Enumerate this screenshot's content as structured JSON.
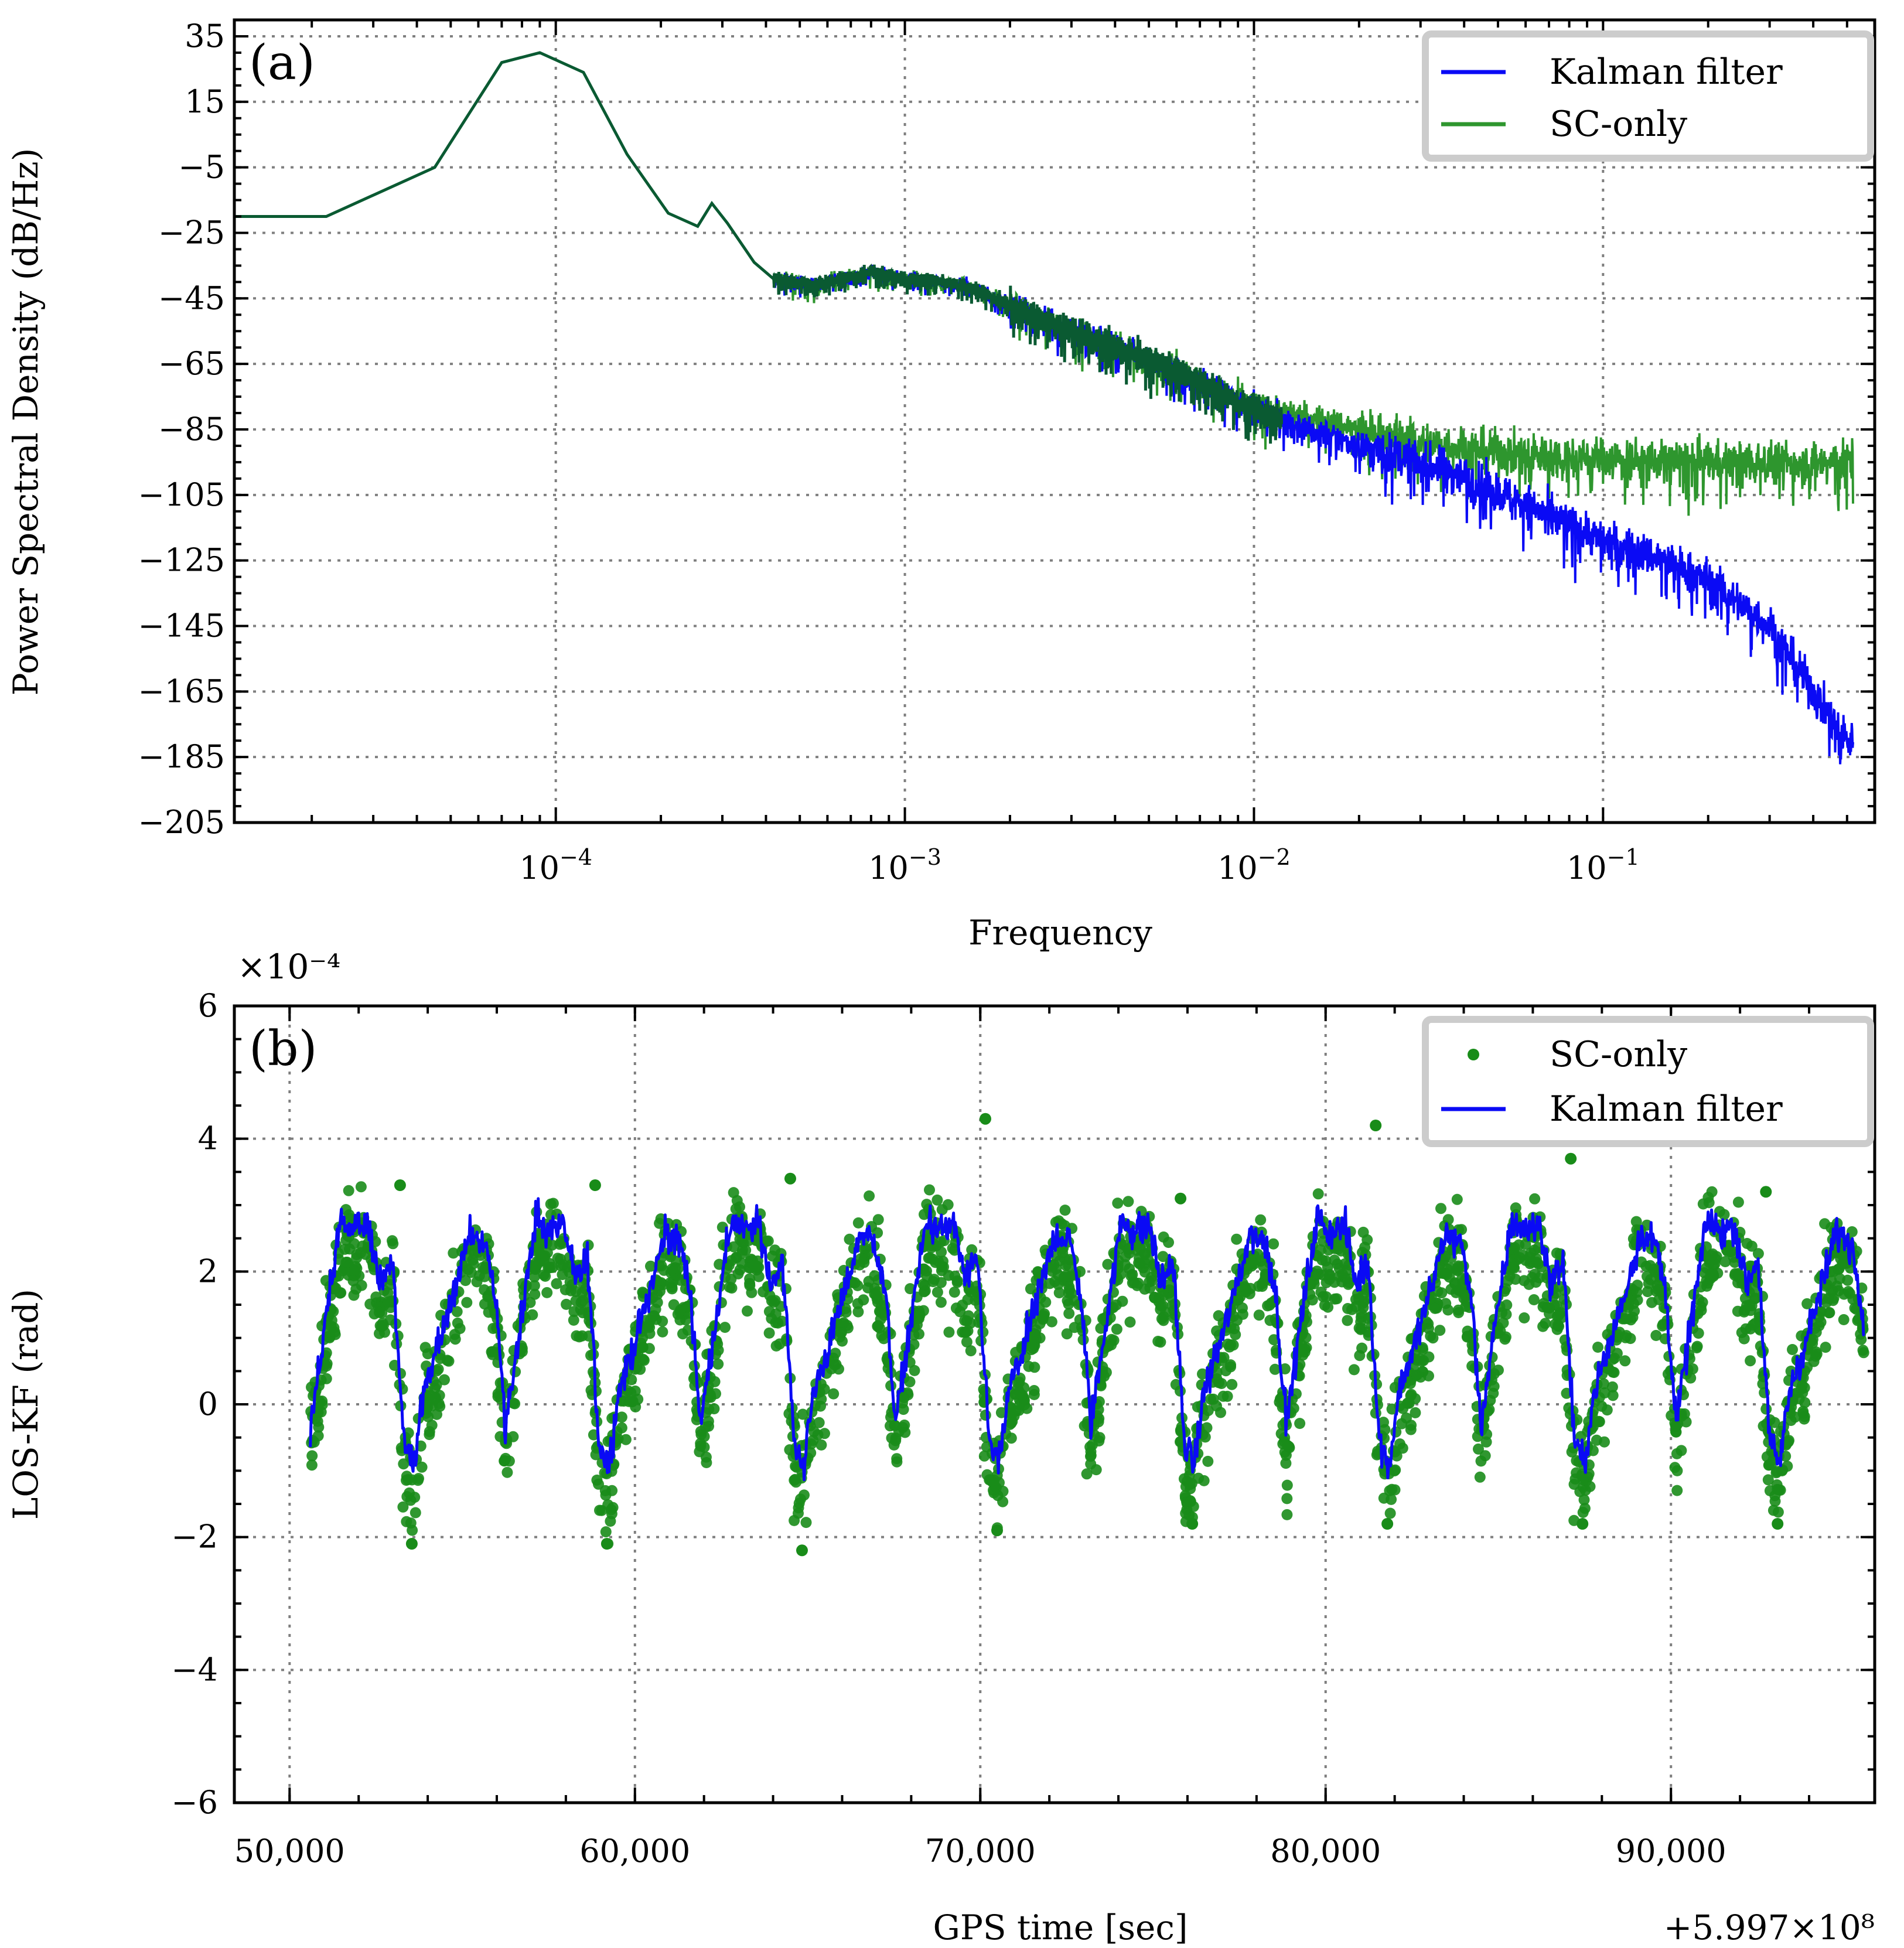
{
  "colors": {
    "kalman": "#0a0af5",
    "sc_only": "#2e962e",
    "overlap": "#0a5a32",
    "scatter": "#198c19"
  },
  "chart_data": [
    {
      "panel": "(a)",
      "type": "line",
      "xscale": "log",
      "xlabel": "Frequency",
      "ylabel": "Power Spectral Density (dB/Hz)",
      "xlim": [
        1.2e-05,
        0.6
      ],
      "ylim": [
        -205,
        40
      ],
      "yticks": [
        35,
        15,
        -5,
        -25,
        -45,
        -65,
        -85,
        -105,
        -125,
        -145,
        -165,
        -185,
        -205
      ],
      "ytick_labels": [
        "35",
        "15",
        "−5",
        "−25",
        "−45",
        "−65",
        "−85",
        "−105",
        "−125",
        "−145",
        "−165",
        "−185",
        "−205"
      ],
      "xticks": [
        0.0001,
        0.001,
        0.01,
        0.1
      ],
      "xtick_bases": [
        "10",
        "10",
        "10",
        "10"
      ],
      "xtick_exponents": [
        "−4",
        "−3",
        "−2",
        "−1"
      ],
      "legend": {
        "position": "top-right",
        "entries": [
          "Kalman filter",
          "SC-only"
        ]
      },
      "series": [
        {
          "name": "Kalman filter",
          "points": [
            [
              1.2e-05,
              -20
            ],
            [
              2.2e-05,
              -20
            ],
            [
              4.5e-05,
              -5
            ],
            [
              7e-05,
              27
            ],
            [
              9e-05,
              30
            ],
            [
              0.00012,
              24
            ],
            [
              0.00016,
              -1
            ],
            [
              0.00021,
              -19
            ],
            [
              0.000255,
              -23
            ],
            [
              0.00028,
              -16
            ],
            [
              0.00031,
              -22
            ],
            [
              0.00037,
              -34
            ],
            [
              0.00042,
              -39
            ],
            [
              0.00055,
              -41
            ],
            [
              0.0008,
              -37
            ],
            [
              0.001,
              -39
            ],
            [
              0.0015,
              -41
            ],
            [
              0.002,
              -47
            ],
            [
              0.003,
              -55
            ],
            [
              0.004,
              -60
            ],
            [
              0.006,
              -67
            ],
            [
              0.01,
              -79
            ],
            [
              0.02,
              -90
            ],
            [
              0.035,
              -97
            ],
            [
              0.05,
              -104
            ],
            [
              0.08,
              -114
            ],
            [
              0.1,
              -119
            ],
            [
              0.15,
              -125
            ],
            [
              0.2,
              -131
            ],
            [
              0.3,
              -145
            ],
            [
              0.4,
              -165
            ],
            [
              0.5,
              -180
            ]
          ]
        },
        {
          "name": "SC-only",
          "points": [
            [
              1.2e-05,
              -20
            ],
            [
              2.2e-05,
              -20
            ],
            [
              4.5e-05,
              -5
            ],
            [
              7e-05,
              27
            ],
            [
              9e-05,
              30
            ],
            [
              0.00012,
              24
            ],
            [
              0.00016,
              -1
            ],
            [
              0.00021,
              -19
            ],
            [
              0.000255,
              -23
            ],
            [
              0.00028,
              -16
            ],
            [
              0.00031,
              -22
            ],
            [
              0.00037,
              -34
            ],
            [
              0.00042,
              -39
            ],
            [
              0.00055,
              -41
            ],
            [
              0.0008,
              -37
            ],
            [
              0.001,
              -39
            ],
            [
              0.0015,
              -41
            ],
            [
              0.002,
              -47
            ],
            [
              0.003,
              -55
            ],
            [
              0.004,
              -60
            ],
            [
              0.006,
              -67
            ],
            [
              0.01,
              -78
            ],
            [
              0.015,
              -82
            ],
            [
              0.02,
              -85
            ],
            [
              0.03,
              -89
            ],
            [
              0.05,
              -92
            ],
            [
              0.1,
              -94
            ],
            [
              0.2,
              -95
            ],
            [
              0.5,
              -95
            ]
          ]
        }
      ]
    },
    {
      "panel": "(b)",
      "type": "scatter",
      "xlabel": "GPS time [sec]",
      "ylabel": "LOS-KF (rad)",
      "y_multiplier": "×10⁻⁴",
      "x_offset": "+5.997×10⁸",
      "xlim": [
        48400,
        95900
      ],
      "ylim": [
        -6,
        6
      ],
      "yticks": [
        6,
        4,
        2,
        0,
        -2,
        -4,
        -6
      ],
      "ytick_labels": [
        "6",
        "4",
        "2",
        "0",
        "−2",
        "−4",
        "−6"
      ],
      "xticks": [
        50000,
        60000,
        70000,
        80000,
        90000
      ],
      "xtick_labels": [
        "50,000",
        "60,000",
        "70,000",
        "80,000",
        "90,000"
      ],
      "legend": {
        "position": "top-right",
        "entries": [
          "SC-only",
          "Kalman filter"
        ]
      },
      "series": [
        {
          "name": "Kalman filter",
          "x_range": [
            50600,
            95600
          ],
          "orbit_period": 5650,
          "profile": [
            [
              0.0,
              -0.3
            ],
            [
              0.08,
              1.3
            ],
            [
              0.16,
              2.8
            ],
            [
              0.22,
              2.6
            ],
            [
              0.3,
              2.7
            ],
            [
              0.36,
              1.8
            ],
            [
              0.42,
              2.2
            ],
            [
              0.48,
              -0.6
            ],
            [
              0.53,
              -0.9
            ],
            [
              0.58,
              0.2
            ],
            [
              0.66,
              0.9
            ],
            [
              0.74,
              1.7
            ],
            [
              0.82,
              2.6
            ],
            [
              0.9,
              2.4
            ],
            [
              0.95,
              1.6
            ],
            [
              1.0,
              -0.3
            ]
          ]
        },
        {
          "name": "SC-only",
          "x_range": [
            50600,
            95600
          ],
          "orbit_period": 5650,
          "min_per_orbit": [
            -2.1,
            -2.1,
            -2.2,
            -1.9,
            -1.8,
            -1.8,
            -1.8,
            -1.8
          ],
          "max_per_orbit": [
            3.3,
            3.3,
            3.4,
            4.3,
            3.1,
            4.2,
            3.7,
            3.2
          ]
        }
      ]
    }
  ]
}
